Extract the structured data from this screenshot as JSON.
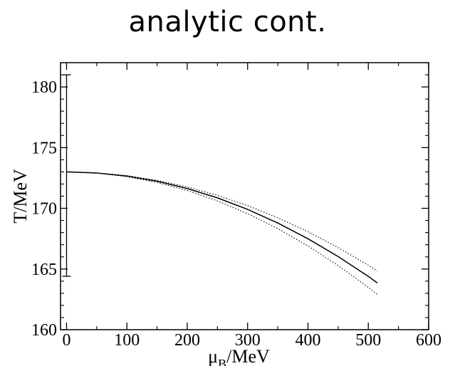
{
  "title": "analytic cont.",
  "chart_data": {
    "type": "line",
    "title": "analytic cont.",
    "xlabel": "μ_B/MeV",
    "xlabel_main": "μ",
    "xlabel_sub": "B",
    "xlabel_unit": "/MeV",
    "ylabel": "T/MeV",
    "xlim": [
      -10,
      600
    ],
    "ylim": [
      160,
      182
    ],
    "x_ticks": [
      0,
      100,
      200,
      300,
      400,
      500,
      600
    ],
    "y_ticks": [
      160,
      165,
      170,
      175,
      180
    ],
    "series": [
      {
        "style": "solid",
        "x": [
          0,
          50,
          100,
          150,
          200,
          250,
          300,
          350,
          400,
          450,
          500,
          515
        ],
        "y": [
          173.0,
          172.91,
          172.66,
          172.23,
          171.63,
          170.86,
          169.91,
          168.79,
          167.49,
          166.03,
          164.39,
          163.85
        ]
      },
      {
        "style": "dotted",
        "x": [
          0,
          50,
          100,
          150,
          200,
          250,
          300,
          350,
          400,
          450,
          500,
          515
        ],
        "y": [
          173.0,
          172.92,
          172.69,
          172.3,
          171.76,
          171.07,
          170.22,
          169.22,
          168.07,
          166.77,
          165.31,
          164.83
        ]
      },
      {
        "style": "dotted",
        "x": [
          0,
          50,
          100,
          150,
          200,
          250,
          300,
          350,
          400,
          450,
          500,
          515
        ],
        "y": [
          173.0,
          172.9,
          172.61,
          172.13,
          171.47,
          170.61,
          169.56,
          168.33,
          166.9,
          165.29,
          163.49,
          162.9
        ]
      }
    ],
    "error_bar": {
      "x": 0,
      "y_low": 164.4,
      "y_high": 181.0
    },
    "grid": false
  }
}
